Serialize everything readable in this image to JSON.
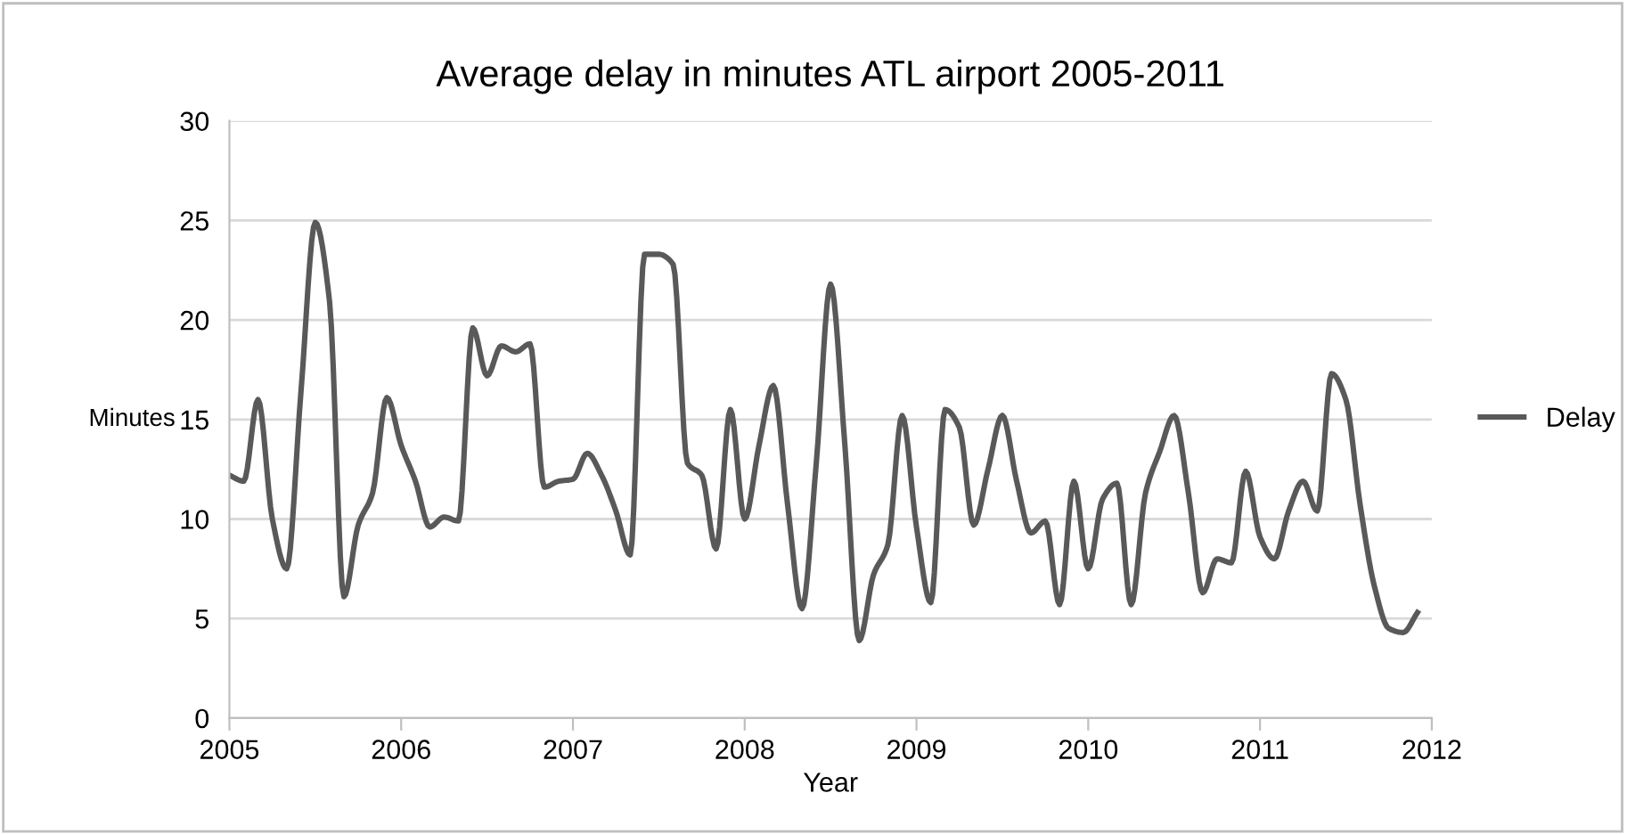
{
  "chart_data": {
    "type": "line",
    "title": "Average delay in minutes ATL airport 2005-2011",
    "xlabel": "Year",
    "ylabel": "Minutes",
    "x": [
      "2005-01",
      "2005-02",
      "2005-03",
      "2005-04",
      "2005-05",
      "2005-06",
      "2005-07",
      "2005-08",
      "2005-09",
      "2005-10",
      "2005-11",
      "2005-12",
      "2006-01",
      "2006-02",
      "2006-03",
      "2006-04",
      "2006-05",
      "2006-06",
      "2006-07",
      "2006-08",
      "2006-09",
      "2006-10",
      "2006-11",
      "2006-12",
      "2007-01",
      "2007-02",
      "2007-03",
      "2007-04",
      "2007-05",
      "2007-06",
      "2007-07",
      "2007-08",
      "2007-09",
      "2007-10",
      "2007-11",
      "2007-12",
      "2008-01",
      "2008-02",
      "2008-03",
      "2008-04",
      "2008-05",
      "2008-06",
      "2008-07",
      "2008-08",
      "2008-09",
      "2008-10",
      "2008-11",
      "2008-12",
      "2009-01",
      "2009-02",
      "2009-03",
      "2009-04",
      "2009-05",
      "2009-06",
      "2009-07",
      "2009-08",
      "2009-09",
      "2009-10",
      "2009-11",
      "2009-12",
      "2010-01",
      "2010-02",
      "2010-03",
      "2010-04",
      "2010-05",
      "2010-06",
      "2010-07",
      "2010-08",
      "2010-09",
      "2010-10",
      "2010-11",
      "2010-12",
      "2011-01",
      "2011-02",
      "2011-03",
      "2011-04",
      "2011-05",
      "2011-06",
      "2011-07",
      "2011-08",
      "2011-09",
      "2011-10",
      "2011-11",
      "2011-12"
    ],
    "series": [
      {
        "name": "Delay",
        "color": "#595959",
        "values": [
          12.2,
          11.9,
          16.0,
          10.0,
          7.5,
          16.4,
          24.9,
          20.9,
          6.1,
          9.7,
          11.3,
          16.1,
          13.7,
          11.9,
          9.6,
          10.1,
          9.9,
          19.6,
          17.2,
          18.7,
          18.4,
          18.8,
          11.6,
          11.9,
          12.0,
          13.3,
          12.2,
          10.4,
          8.2,
          23.3,
          23.3,
          22.8,
          12.8,
          12.2,
          8.5,
          15.5,
          10.0,
          13.7,
          16.7,
          10.7,
          5.5,
          12.8,
          21.8,
          13.7,
          3.9,
          7.2,
          8.7,
          15.2,
          9.6,
          5.8,
          15.5,
          14.6,
          9.7,
          12.5,
          15.2,
          11.9,
          9.3,
          9.9,
          5.7,
          11.9,
          7.5,
          11.0,
          11.8,
          5.7,
          11.3,
          13.4,
          15.2,
          11.3,
          6.3,
          8.0,
          7.8,
          12.4,
          9.1,
          8.0,
          10.4,
          11.9,
          10.4,
          17.3,
          16.0,
          10.7,
          6.6,
          4.5,
          4.3,
          5.3
        ]
      }
    ],
    "xlim": [
      "2005",
      "2012"
    ],
    "xticks": [
      {
        "value": "2005",
        "label": "2005"
      },
      {
        "value": "2006",
        "label": "2006"
      },
      {
        "value": "2007",
        "label": "2007"
      },
      {
        "value": "2008",
        "label": "2008"
      },
      {
        "value": "2009",
        "label": "2009"
      },
      {
        "value": "2010",
        "label": "2010"
      },
      {
        "value": "2011",
        "label": "2011"
      },
      {
        "value": "2012",
        "label": "2012"
      }
    ],
    "ylim": [
      0,
      30
    ],
    "yticks": [
      0,
      5,
      10,
      15,
      20,
      25,
      30
    ],
    "grid": "y",
    "legend": "right",
    "marker": "none",
    "line_style": "solid"
  }
}
